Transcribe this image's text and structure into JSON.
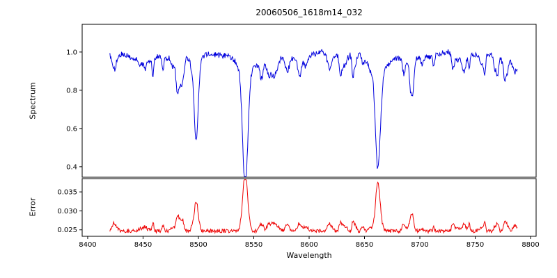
{
  "chart_data": {
    "type": "line",
    "title": "20060506_1618m14_032",
    "xlabel": "Wavelength",
    "grid": false,
    "legend": "none",
    "xlim": [
      8395,
      8805
    ],
    "xticks": [
      8400,
      8450,
      8500,
      8550,
      8600,
      8650,
      8700,
      8750,
      8800
    ],
    "xtick_labels": [
      "8400",
      "8450",
      "8500",
      "8550",
      "8600",
      "8650",
      "8700",
      "8750",
      "8800"
    ],
    "x_start": 8420,
    "x_end": 8788,
    "x_step": 0.5,
    "seed": 42,
    "panels": [
      {
        "name": "spectrum",
        "ylabel": "Spectrum",
        "color": "#0000dd",
        "ylim": [
          0.345,
          1.145
        ],
        "yticks": [
          0.4,
          0.6,
          0.8,
          1.0
        ],
        "ytick_labels": [
          "0.4",
          "0.6",
          "0.8",
          "1.0"
        ],
        "continuum": 0.98,
        "noise": 0.015,
        "lf_amp1": 0.014,
        "lf_period1": 109,
        "lf_amp2": 0.008,
        "lf_period2": 37,
        "minor_line_count": 48,
        "minor_depth_range": [
          0.02,
          0.1
        ],
        "minor_sigma_range": [
          0.7,
          2.2
        ],
        "absorption_lines": [
          {
            "center": 8498.0,
            "core_depth": 0.41,
            "core_sigma": 1.8,
            "wing_depth": 0.05,
            "wing_sigma": 5.0,
            "min_flux": 0.52
          },
          {
            "center": 8542.0,
            "core_depth": 0.52,
            "core_sigma": 2.3,
            "wing_depth": 0.08,
            "wing_sigma": 8.0,
            "min_flux": 0.38
          },
          {
            "center": 8662.0,
            "core_depth": 0.5,
            "core_sigma": 2.1,
            "wing_depth": 0.075,
            "wing_sigma": 7.0,
            "min_flux": 0.4
          }
        ]
      },
      {
        "name": "error",
        "ylabel": "Error",
        "color": "#ee0000",
        "ylim": [
          0.0233,
          0.0385
        ],
        "yticks": [
          0.025,
          0.03,
          0.035
        ],
        "ytick_labels": [
          "0.025",
          "0.030",
          "0.035"
        ],
        "baseline": 0.0247,
        "noise": 0.0005,
        "minor_bump_scale": 0.022,
        "peaks": [
          {
            "center": 8498.0,
            "amp": 0.0078,
            "sigma": 1.8,
            "peak_value": 0.0325
          },
          {
            "center": 8542.0,
            "amp": 0.0131,
            "sigma": 2.2,
            "peak_value": 0.0378
          },
          {
            "center": 8662.0,
            "amp": 0.0128,
            "sigma": 2.0,
            "peak_value": 0.0375
          }
        ]
      }
    ]
  }
}
